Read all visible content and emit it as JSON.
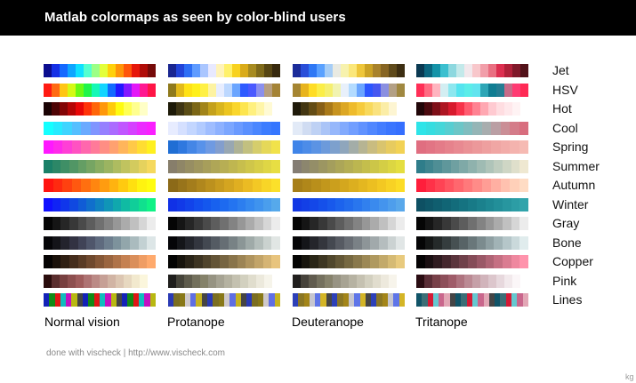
{
  "header": {
    "title": "Matlab colormaps as seen by color-blind users"
  },
  "columns": [
    "Normal vision",
    "Protanope",
    "Deuteranope",
    "Tritanope"
  ],
  "footer": {
    "credit": "done with vischeck | http://www.vischeck.com",
    "signature": "kg"
  },
  "colormaps": [
    {
      "name": "Jet",
      "strips": [
        [
          "#0b0d8f",
          "#1530e6",
          "#1469ff",
          "#0ea5ff",
          "#0fe0ff",
          "#54ffd0",
          "#9cff86",
          "#e3ff3a",
          "#ffd10a",
          "#ff9509",
          "#ff560b",
          "#e6170b",
          "#b00c08",
          "#760a09"
        ],
        [
          "#1a2690",
          "#2244d8",
          "#2d6ef5",
          "#5f9bff",
          "#aac6ff",
          "#e8e9ff",
          "#fff3b9",
          "#fff16b",
          "#f8d21f",
          "#d9ab1a",
          "#a78b20",
          "#7f6a1a",
          "#574613",
          "#37290d"
        ],
        [
          "#1b2c9a",
          "#2a4fd9",
          "#2f78f5",
          "#5aa1ff",
          "#a6cdf6",
          "#e9eae2",
          "#f7f2ae",
          "#fbe77a",
          "#eec63a",
          "#cba225",
          "#a8822b",
          "#876523",
          "#5f4a1b",
          "#3d2e12"
        ],
        [
          "#0b3a52",
          "#0c6780",
          "#1593a8",
          "#3bbfcf",
          "#8dd8df",
          "#c3e9ea",
          "#f2e8ec",
          "#f8c7cb",
          "#f19ea9",
          "#e96f81",
          "#dd2f50",
          "#b1213a",
          "#80192a",
          "#521219"
        ]
      ]
    },
    {
      "name": "HSV",
      "strips": [
        [
          "#ff1a12",
          "#ff6a12",
          "#ffc614",
          "#d5f914",
          "#6af915",
          "#1ff54a",
          "#15f8b5",
          "#13d5ff",
          "#136bff",
          "#2318ff",
          "#8318ff",
          "#e318f7",
          "#ff1891",
          "#ff1546"
        ],
        [
          "#8f7a1c",
          "#e3ba1a",
          "#ffe216",
          "#fff01c",
          "#fff045",
          "#fdf3a2",
          "#e7edff",
          "#bdd8ff",
          "#6aa5ff",
          "#2f5bff",
          "#4a59ff",
          "#8b8fed",
          "#b79e7f",
          "#a48336"
        ],
        [
          "#a58532",
          "#e8b41d",
          "#ffdd25",
          "#fbee47",
          "#f5ef6f",
          "#f1f3b0",
          "#e8f0fb",
          "#b3dbff",
          "#6aa5ff",
          "#2c56ff",
          "#4758f0",
          "#8a8fe0",
          "#b3a085",
          "#a08840"
        ],
        [
          "#ff2e56",
          "#ff6b82",
          "#ffb4bf",
          "#d3eef2",
          "#8de7ef",
          "#55e4ef",
          "#5bede9",
          "#61e4ef",
          "#2ea6b6",
          "#107d92",
          "#247d93",
          "#c76b88",
          "#ff3b73",
          "#ff2a55"
        ]
      ]
    },
    {
      "name": "Hot",
      "strips": [
        [
          "#1a0304",
          "#4e0405",
          "#820506",
          "#b50606",
          "#e80707",
          "#ff3308",
          "#ff6509",
          "#ff980a",
          "#ffcb0b",
          "#fffb10",
          "#ffff55",
          "#ffff8f",
          "#ffffc6",
          "#ffffff"
        ],
        [
          "#1d1a08",
          "#3e3514",
          "#5a4d16",
          "#7b6616",
          "#a18419",
          "#c4a11b",
          "#d9b51d",
          "#ecc51f",
          "#fad62c",
          "#fde54f",
          "#fff07e",
          "#fff5a8",
          "#fffad4",
          "#ffffff"
        ],
        [
          "#1f1a0a",
          "#433612",
          "#634c15",
          "#875f17",
          "#a97919",
          "#c7931f",
          "#dca724",
          "#eebb2c",
          "#f6cb3d",
          "#f8d95c",
          "#fae27e",
          "#fbeda6",
          "#fdf5d2",
          "#ffffff"
        ],
        [
          "#210608",
          "#4b0a0f",
          "#7e0f18",
          "#ad1622",
          "#d71a2d",
          "#f7324a",
          "#ff5c70",
          "#ff8292",
          "#ffa8b2",
          "#ffcad1",
          "#ffdde1",
          "#ffe8eb",
          "#fff3f4",
          "#ffffff"
        ]
      ]
    },
    {
      "name": "Cool",
      "strips": [
        [
          "#14ffff",
          "#27eaff",
          "#3fd4ff",
          "#55bfff",
          "#6aaaff",
          "#8095ff",
          "#9680ff",
          "#ab6bff",
          "#c056ff",
          "#d541ff",
          "#eb2bff",
          "#fa1fff"
        ],
        [
          "#e7ecff",
          "#d5e0ff",
          "#c3d6ff",
          "#b2cbff",
          "#9fbdff",
          "#8db1ff",
          "#7ba6ff",
          "#6a9aff",
          "#5a90ff",
          "#4a86ff",
          "#3c7cff",
          "#3576ff"
        ],
        [
          "#e2eaf7",
          "#d0dcf2",
          "#bed1f4",
          "#aac4f7",
          "#96b7fb",
          "#82aafd",
          "#719eff",
          "#6092ff",
          "#5087ff",
          "#437dff",
          "#3a75ff",
          "#356fff"
        ],
        [
          "#2ee4e8",
          "#35dde0",
          "#44d7d9",
          "#57ced1",
          "#6cc6c7",
          "#80bdbf",
          "#95b5b6",
          "#a8adae",
          "#ba9fa4",
          "#ca8e96",
          "#d47c89",
          "#d86d7e"
        ]
      ]
    },
    {
      "name": "Spring",
      "strips": [
        [
          "#ff18ff",
          "#ff2aea",
          "#ff3fd6",
          "#ff52c2",
          "#ff67ad",
          "#ff7a99",
          "#ff8e84",
          "#ffa170",
          "#ffb55b",
          "#ffc948",
          "#ffdd32",
          "#fff01f"
        ],
        [
          "#1f6ed4",
          "#2f78df",
          "#4486e6",
          "#5892ea",
          "#6f9ae2",
          "#839ecd",
          "#98a7b2",
          "#aeb295",
          "#c2c080",
          "#d5cd6c",
          "#e5d859",
          "#f1e24a"
        ],
        [
          "#3f84e8",
          "#4c8ce8",
          "#5b93e4",
          "#6c9adb",
          "#7da0cd",
          "#8fa6bc",
          "#a3ada8",
          "#b6b493",
          "#c9bc80",
          "#d9c46e",
          "#e7cb5f",
          "#f2d254"
        ],
        [
          "#e06e80",
          "#e27484",
          "#e47b88",
          "#e6828c",
          "#e88991",
          "#ea9195",
          "#ec989a",
          "#ee9f9f",
          "#f0a6a4",
          "#f2aca9",
          "#f4b3ae",
          "#f6bab3"
        ]
      ]
    },
    {
      "name": "Summer",
      "strips": [
        [
          "#1a8068",
          "#2c8767",
          "#3f8f66",
          "#519665",
          "#649e64",
          "#76a563",
          "#89ad62",
          "#9bb461",
          "#aebc60",
          "#c0c35f",
          "#d3cb5e",
          "#e5d25d",
          "#f5d95d"
        ],
        [
          "#877e6b",
          "#8f8667",
          "#978e63",
          "#9f965f",
          "#a79e5b",
          "#afa657",
          "#b7ae54",
          "#bfb650",
          "#c7be4d",
          "#cfc64a",
          "#d7ce47",
          "#dfd645",
          "#e7de43"
        ],
        [
          "#847d74",
          "#8c866e",
          "#948e68",
          "#9c9662",
          "#a49e5d",
          "#aca658",
          "#b4ae54",
          "#bcb650",
          "#c4be4c",
          "#ccc648",
          "#d4ce45",
          "#dcd642",
          "#e4de40"
        ],
        [
          "#2f7d8a",
          "#3f858f",
          "#4f8e95",
          "#5f979b",
          "#6fa0a1",
          "#7fa9a7",
          "#8fb2ad",
          "#9fbbb3",
          "#afc4b9",
          "#bfcdbf",
          "#cfd6c5",
          "#dfdfcb",
          "#efe8d1"
        ]
      ]
    },
    {
      "name": "Autumn",
      "strips": [
        [
          "#ff1410",
          "#ff2a10",
          "#ff4110",
          "#ff5810",
          "#ff6f10",
          "#ff8610",
          "#ff9c10",
          "#ffb310",
          "#ffca10",
          "#ffe010",
          "#fff310",
          "#fffc10"
        ],
        [
          "#8c6a18",
          "#98741b",
          "#a47d1c",
          "#b0871d",
          "#bc911e",
          "#c89b1f",
          "#d4a520",
          "#e0af21",
          "#ebbb23",
          "#f3c825",
          "#f8d527",
          "#fbe02a"
        ],
        [
          "#a77f19",
          "#b0871a",
          "#b98f1b",
          "#c2971c",
          "#cb9f1d",
          "#d4a71e",
          "#dcaf1f",
          "#e4b720",
          "#ecbf21",
          "#f3c822",
          "#f8d224",
          "#fcdc26"
        ],
        [
          "#ff1e3b",
          "#ff3148",
          "#ff4354",
          "#ff5561",
          "#ff676e",
          "#ff797b",
          "#ff8b88",
          "#ff9d95",
          "#ffafa2",
          "#ffc1af",
          "#ffd0b9",
          "#ffdcc4"
        ]
      ]
    },
    {
      "name": "Winter",
      "strips": [
        [
          "#1010ff",
          "#1023f5",
          "#1036eb",
          "#1049e1",
          "#105cd6",
          "#106fcc",
          "#1082c1",
          "#1095b7",
          "#10a8ad",
          "#10bba3",
          "#10ce99",
          "#10e08e",
          "#10f286"
        ],
        [
          "#1031e6",
          "#1139e8",
          "#1243ea",
          "#134eed",
          "#1457ee",
          "#1861ef",
          "#1d6af0",
          "#2474f0",
          "#2c7eef",
          "#3589ef",
          "#3f93ee",
          "#4a9eed",
          "#56a9eb"
        ],
        [
          "#1238e4",
          "#133fe6",
          "#1447e8",
          "#1550ea",
          "#1859ec",
          "#1c63ed",
          "#226ced",
          "#2976ee",
          "#3180ee",
          "#3a8aee",
          "#4494ed",
          "#4e9eec",
          "#59a8eb"
        ],
        [
          "#0e5063",
          "#0f5769",
          "#105e6f",
          "#116575",
          "#136c7b",
          "#157381",
          "#187a87",
          "#1b818d",
          "#1e8893",
          "#228f99",
          "#27969f",
          "#2c9da5",
          "#31a4ab"
        ]
      ]
    },
    {
      "name": "Gray",
      "strips": [
        [
          "#050505",
          "#151515",
          "#262626",
          "#383838",
          "#4a4a4a",
          "#5d5d5d",
          "#707070",
          "#838383",
          "#979797",
          "#ababab",
          "#c0c0c0",
          "#d6d6d6",
          "#ececec"
        ],
        [
          "#050505",
          "#151515",
          "#262626",
          "#383838",
          "#4a4a4a",
          "#5d5d5d",
          "#707070",
          "#838383",
          "#979797",
          "#ababab",
          "#c0c0c0",
          "#d6d6d6",
          "#ececec"
        ],
        [
          "#050505",
          "#151515",
          "#262626",
          "#383838",
          "#4a4a4a",
          "#5d5d5d",
          "#707070",
          "#838383",
          "#979797",
          "#ababab",
          "#c0c0c0",
          "#d6d6d6",
          "#ececec"
        ],
        [
          "#050505",
          "#151515",
          "#262626",
          "#383838",
          "#4a4a4a",
          "#5d5d5d",
          "#707070",
          "#838383",
          "#979797",
          "#ababab",
          "#c0c0c0",
          "#d6d6d6",
          "#ececec"
        ]
      ]
    },
    {
      "name": "Bone",
      "strips": [
        [
          "#050508",
          "#141419",
          "#23232d",
          "#323242",
          "#404357",
          "#4f566b",
          "#5e6a7e",
          "#6d7e8e",
          "#7d929c",
          "#92a6ab",
          "#aabbbe",
          "#c3d1d3",
          "#dde6e7"
        ],
        [
          "#050508",
          "#141519",
          "#23252c",
          "#33363f",
          "#434851",
          "#545b63",
          "#666e74",
          "#788285",
          "#8b9696",
          "#9faaa8",
          "#b4bebb",
          "#cad2cf",
          "#e1e6e4"
        ],
        [
          "#050507",
          "#141519",
          "#24252b",
          "#34363d",
          "#444850",
          "#565a62",
          "#686d74",
          "#7a8186",
          "#8d9598",
          "#a1a9ab",
          "#b5bdbe",
          "#cbd2d2",
          "#e1e6e6"
        ],
        [
          "#050506",
          "#151717",
          "#252a2a",
          "#353d3e",
          "#465052",
          "#576366",
          "#69777a",
          "#7b8b8e",
          "#8e9fa2",
          "#a1b3b6",
          "#b5c6c9",
          "#cad9db",
          "#e0eced"
        ]
      ]
    },
    {
      "name": "Copper",
      "strips": [
        [
          "#050302",
          "#1a110a",
          "#2f1f13",
          "#452d1c",
          "#5a3b25",
          "#6f492e",
          "#855737",
          "#9a6540",
          "#af7349",
          "#c58152",
          "#da8f5b",
          "#ef9d64",
          "#ffaa6d"
        ],
        [
          "#040403",
          "#17140d",
          "#2a2418",
          "#3d3422",
          "#50442c",
          "#635436",
          "#766441",
          "#89744b",
          "#9c8455",
          "#af945f",
          "#c2a469",
          "#d5b474",
          "#e8c47e"
        ],
        [
          "#040403",
          "#17150d",
          "#2a2617",
          "#3d3622",
          "#50472c",
          "#635736",
          "#766841",
          "#89784b",
          "#9c8855",
          "#af995f",
          "#c2a96a",
          "#d5ba74",
          "#e8ca7e"
        ],
        [
          "#050304",
          "#1a0f12",
          "#2f1b20",
          "#45272e",
          "#5a343c",
          "#6f404a",
          "#854c58",
          "#9a5867",
          "#af6475",
          "#c57083",
          "#da7c91",
          "#ef889f",
          "#ff93ac"
        ]
      ]
    },
    {
      "name": "Pink",
      "strips": [
        [
          "#2a0c0c",
          "#5a2d2d",
          "#784040",
          "#8d4f4f",
          "#9f5c5c",
          "#ae7373",
          "#bb8a86",
          "#c6a096",
          "#d1b4a4",
          "#dcc6b2",
          "#e7d8c0",
          "#f2e9ce",
          "#fbf6dc",
          "#ffffff"
        ],
        [
          "#1f1e1c",
          "#454339",
          "#5e5b4c",
          "#73705c",
          "#85826a",
          "#969382",
          "#a6a393",
          "#b5b2a1",
          "#c4c1b0",
          "#d2d0bf",
          "#e0ddcd",
          "#ece9dc",
          "#f6f4ea",
          "#ffffff"
        ],
        [
          "#211f1d",
          "#47433b",
          "#605b4e",
          "#74705e",
          "#86826c",
          "#979383",
          "#a7a393",
          "#b6b2a2",
          "#c5c1b1",
          "#d3d0c0",
          "#e1ddce",
          "#ede9dd",
          "#f7f4eb",
          "#ffffff"
        ],
        [
          "#2a0c12",
          "#5a2d36",
          "#784049",
          "#8d4f5a",
          "#9f5c69",
          "#ae737f",
          "#bb8a94",
          "#c6a0a8",
          "#d1b4bb",
          "#dcc6cc",
          "#e7d8dd",
          "#f2e9ec",
          "#fbf6f8",
          "#ffffff"
        ]
      ]
    },
    {
      "name": "Lines",
      "strips": [
        [
          "#1322b8",
          "#118a16",
          "#e01515",
          "#11bdbd",
          "#c212c2",
          "#b8b811",
          "#444444",
          "#1322b8",
          "#118a16",
          "#e01515",
          "#11bdbd",
          "#c212c2",
          "#b8b811",
          "#444444",
          "#1322b8",
          "#118a16",
          "#e01515",
          "#11bdbd",
          "#c212c2",
          "#b8b811"
        ],
        [
          "#2a3ab4",
          "#7b6e22",
          "#887818",
          "#cfc9ca",
          "#5f6ee3",
          "#c5b221",
          "#464544",
          "#2a3ab4",
          "#7b6e22",
          "#887818",
          "#cfc9ca",
          "#5f6ee3",
          "#c5b221",
          "#464544",
          "#2a3ab4",
          "#7b6e22",
          "#887818",
          "#cfc9ca",
          "#5f6ee3",
          "#c5b221"
        ],
        [
          "#2d40b8",
          "#8a7624",
          "#a38519",
          "#c6c6cf",
          "#5e75e8",
          "#d4b526",
          "#474645",
          "#2d40b8",
          "#8a7624",
          "#a38519",
          "#c6c6cf",
          "#5e75e8",
          "#d4b526",
          "#474645",
          "#2d40b8",
          "#8a7624",
          "#a38519",
          "#c6c6cf",
          "#5e75e8",
          "#d4b526"
        ],
        [
          "#115468",
          "#3c6e76",
          "#d41a36",
          "#65c8d0",
          "#c9668c",
          "#e2a6b5",
          "#454546",
          "#115468",
          "#3c6e76",
          "#d41a36",
          "#65c8d0",
          "#c9668c",
          "#e2a6b5",
          "#454546",
          "#115468",
          "#3c6e76",
          "#d41a36",
          "#65c8d0",
          "#c9668c",
          "#e2a6b5"
        ]
      ]
    }
  ]
}
